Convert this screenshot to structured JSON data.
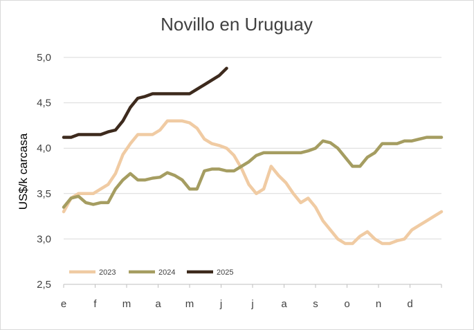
{
  "chart_data": {
    "type": "line",
    "title": "Novillo en Uruguay",
    "xlabel": "",
    "ylabel": "US$/k carcasa",
    "x_tick_labels": [
      "e",
      "f",
      "m",
      "a",
      "m",
      "j",
      "j",
      "a",
      "s",
      "o",
      "n",
      "d"
    ],
    "y_tick_labels": [
      "2,5",
      "3,0",
      "3,5",
      "4,0",
      "4,5",
      "5,0"
    ],
    "ylim": [
      2.5,
      5.0
    ],
    "grid": "horizontal",
    "legend_position": "bottom-left",
    "series": [
      {
        "name": "2023",
        "color": "#f0cba3",
        "values": [
          3.3,
          3.45,
          3.5,
          3.5,
          3.5,
          3.55,
          3.6,
          3.72,
          3.93,
          4.05,
          4.15,
          4.15,
          4.15,
          4.2,
          4.3,
          4.3,
          4.3,
          4.28,
          4.22,
          4.1,
          4.05,
          4.03,
          4.0,
          3.92,
          3.78,
          3.6,
          3.5,
          3.55,
          3.8,
          3.7,
          3.62,
          3.5,
          3.4,
          3.45,
          3.35,
          3.2,
          3.1,
          3.0,
          2.95,
          2.95,
          3.03,
          3.08,
          3.0,
          2.95,
          2.95,
          2.98,
          3.0,
          3.1,
          3.15,
          3.2,
          3.25,
          3.3
        ]
      },
      {
        "name": "2024",
        "color": "#a59d61",
        "values": [
          3.35,
          3.45,
          3.47,
          3.4,
          3.38,
          3.4,
          3.4,
          3.55,
          3.65,
          3.72,
          3.65,
          3.65,
          3.67,
          3.68,
          3.73,
          3.7,
          3.65,
          3.55,
          3.55,
          3.75,
          3.77,
          3.77,
          3.75,
          3.75,
          3.8,
          3.85,
          3.92,
          3.95,
          3.95,
          3.95,
          3.95,
          3.95,
          3.95,
          3.97,
          4.0,
          4.08,
          4.06,
          4.0,
          3.9,
          3.8,
          3.8,
          3.9,
          3.95,
          4.05,
          4.05,
          4.05,
          4.08,
          4.08,
          4.1,
          4.12,
          4.12,
          4.12
        ]
      },
      {
        "name": "2025",
        "color": "#3d2a1d",
        "values": [
          4.12,
          4.12,
          4.15,
          4.15,
          4.15,
          4.15,
          4.18,
          4.2,
          4.3,
          4.45,
          4.55,
          4.57,
          4.6,
          4.6,
          4.6,
          4.6,
          4.6,
          4.6,
          4.65,
          4.7,
          4.75,
          4.8,
          4.88
        ]
      }
    ]
  }
}
